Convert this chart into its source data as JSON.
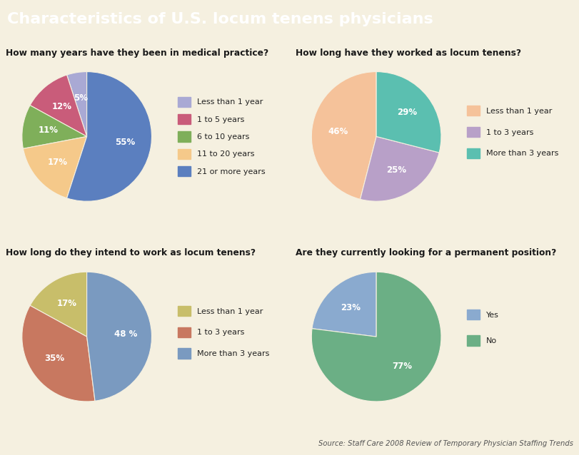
{
  "title": "Characteristics of U.S. locum tenens physicians",
  "title_bg": "#D4A917",
  "title_color": "#FFFFFF",
  "bg_color": "#F5F0E0",
  "source_text": "Source: Staff Care 2008 Review of Temporary Physician Staffing Trends",
  "q1_title": "How many years have they been in medical practice?",
  "q1_labels": [
    "Less than 1 year",
    "1 to 5 years",
    "6 to 10 years",
    "11 to 20 years",
    "21 or more years"
  ],
  "q1_values": [
    5,
    12,
    11,
    17,
    55
  ],
  "q1_colors": [
    "#A9A9D4",
    "#C95C7A",
    "#7FAF5A",
    "#F5C98A",
    "#5B7FBF"
  ],
  "q1_pct_labels": [
    "5%",
    "12%",
    "11%",
    "17%",
    "55%"
  ],
  "q1_startangle": 90,
  "q2_title": "How long have they worked as locum tenens?",
  "q2_labels": [
    "Less than 1 year",
    "1 to 3 years",
    "More than 3 years"
  ],
  "q2_values": [
    46,
    25,
    29
  ],
  "q2_colors": [
    "#F5C29A",
    "#B8A0C8",
    "#5BBFB0"
  ],
  "q2_pct_labels": [
    "46%",
    "25%",
    "29%"
  ],
  "q2_startangle": 90,
  "q3_title": "How long do they intend to work as locum tenens?",
  "q3_labels": [
    "Less than 1 year",
    "1 to 3 years",
    "More than 3 years"
  ],
  "q3_values": [
    17,
    35,
    48
  ],
  "q3_colors": [
    "#C8BE6A",
    "#C87860",
    "#7A9AC0"
  ],
  "q3_pct_labels": [
    "17%",
    "35%",
    "48 %"
  ],
  "q3_startangle": 90,
  "q4_title": "Are they currently looking for a permanent position?",
  "q4_labels": [
    "Yes",
    "No"
  ],
  "q4_values": [
    23,
    77
  ],
  "q4_colors": [
    "#8AAACF",
    "#6BAF85"
  ],
  "q4_pct_labels": [
    "23%",
    "77%"
  ],
  "q4_startangle": 90
}
